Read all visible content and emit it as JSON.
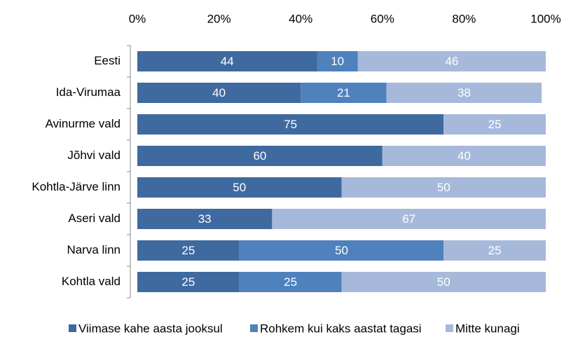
{
  "chart_data": {
    "type": "stacked_barh",
    "categories": [
      "Eesti",
      "Ida-Virumaa",
      "Avinurme vald",
      "Jõhvi vald",
      "Kohtla-Järve linn",
      "Aseri vald",
      "Narva linn",
      "Kohtla vald"
    ],
    "series": [
      {
        "name": "Viimase kahe aasta jooksul",
        "color": "#3f6aa0",
        "values": [
          44,
          40,
          75,
          60,
          50,
          33,
          25,
          25
        ]
      },
      {
        "name": "Rohkem kui kaks aastat tagasi",
        "color": "#4f81bd",
        "values": [
          10,
          21,
          null,
          null,
          null,
          null,
          50,
          25
        ]
      },
      {
        "name": "Mitte kunagi",
        "color": "#a7b9db",
        "values": [
          46,
          38,
          25,
          40,
          50,
          67,
          25,
          50
        ]
      }
    ],
    "xlim": [
      0,
      100
    ],
    "xticks": [
      {
        "value": 0,
        "label": "0%"
      },
      {
        "value": 20,
        "label": "20%"
      },
      {
        "value": 40,
        "label": "40%"
      },
      {
        "value": 60,
        "label": "60%"
      },
      {
        "value": 80,
        "label": "80%"
      },
      {
        "value": 100,
        "label": "100%"
      }
    ],
    "legend": "bottom"
  }
}
